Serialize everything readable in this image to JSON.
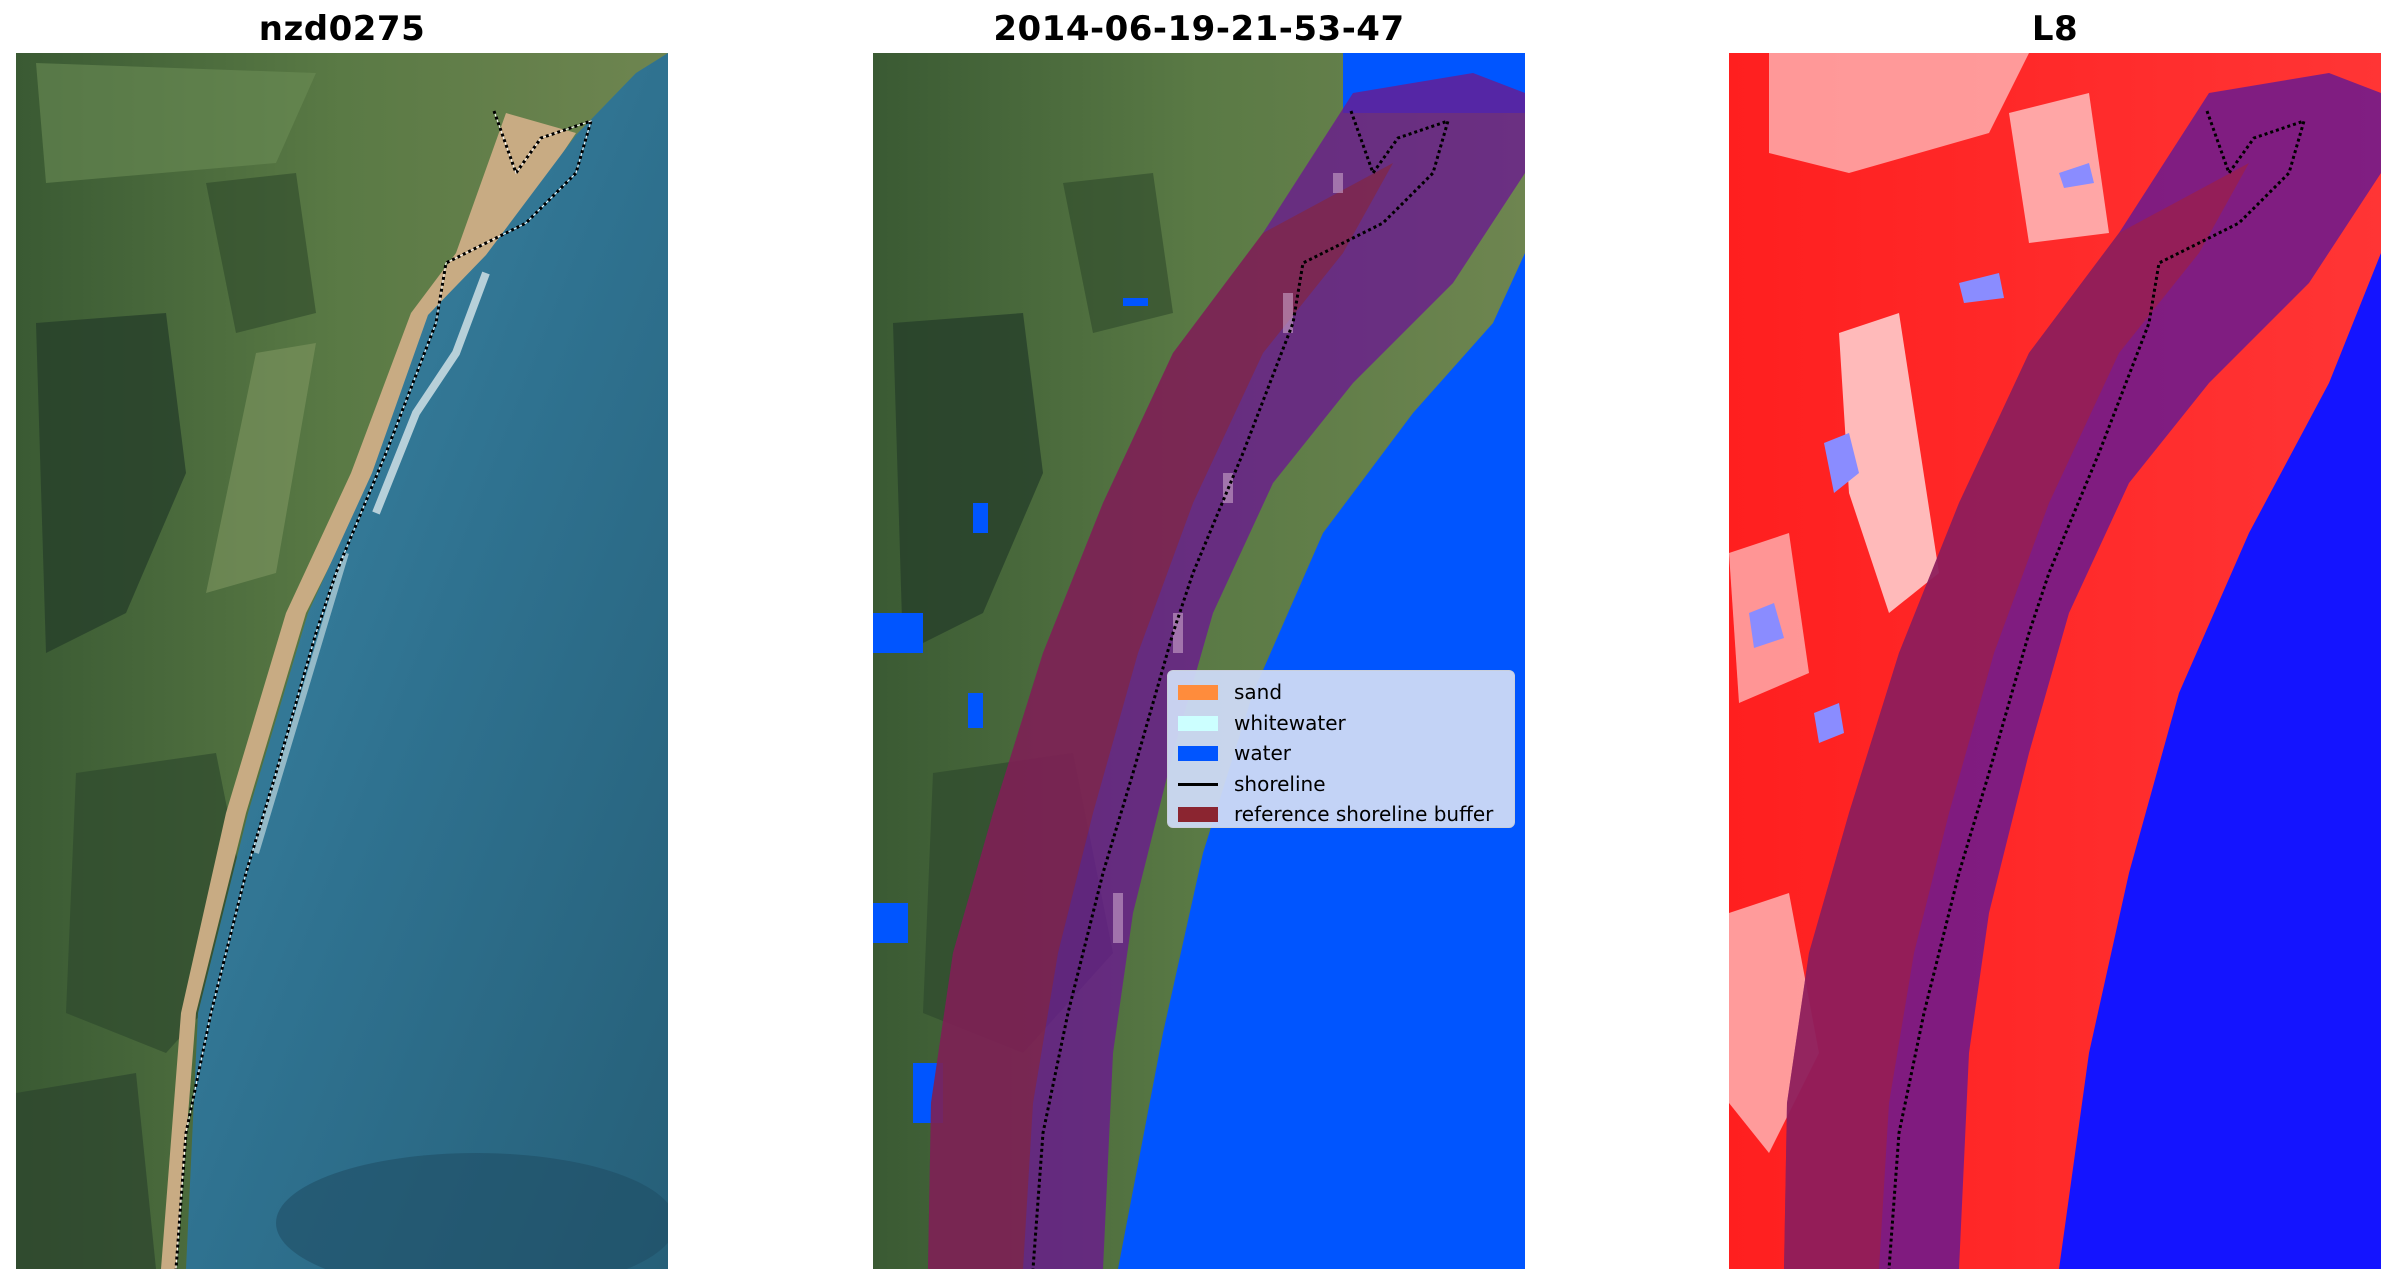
{
  "panels": [
    {
      "title": "nzd0275"
    },
    {
      "title": "2014-06-19-21-53-47"
    },
    {
      "title": "L8"
    }
  ],
  "legend": {
    "items": [
      {
        "label": "sand",
        "color": "#ff8c3c",
        "kind": "patch"
      },
      {
        "label": "whitewater",
        "color": "#ccffff",
        "kind": "patch"
      },
      {
        "label": "water",
        "color": "#0055ff",
        "kind": "patch"
      },
      {
        "label": "shoreline",
        "color": "#000000",
        "kind": "line"
      },
      {
        "label": "reference shoreline buffer",
        "color": "#8b2530",
        "kind": "patch"
      }
    ]
  },
  "colors": {
    "land": "#4f6d3a",
    "sand": "#c8ab83",
    "sea": "#2d6f8a",
    "water_class": "#0055ff",
    "buffer": "#6a1a8f",
    "index_positive": "#ff2020",
    "index_negative": "#1414ff"
  }
}
